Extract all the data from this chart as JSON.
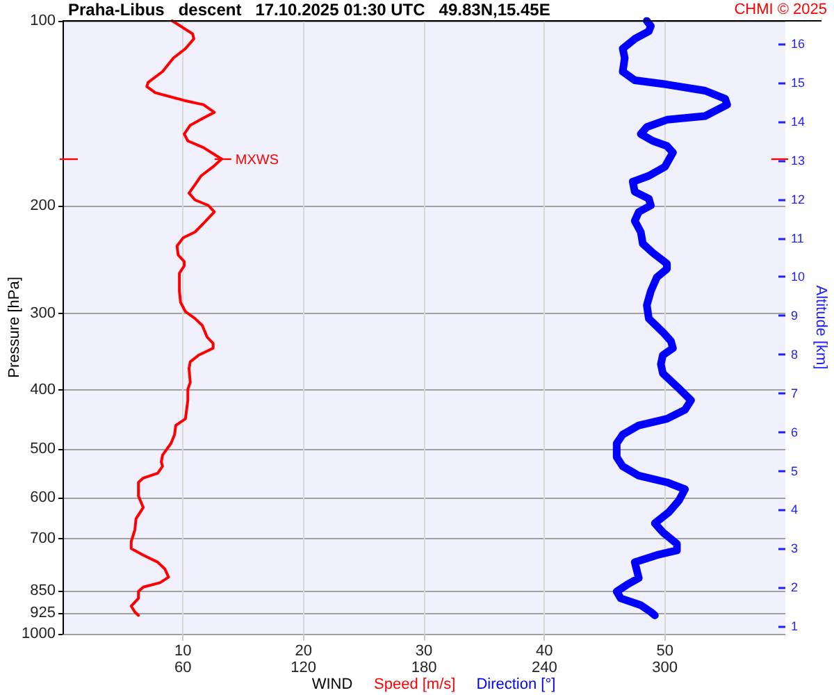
{
  "chart_data": {
    "type": "line",
    "orientation": "horizontal",
    "title": "Praha-Libus   descent   17.10.2025 01:30 UTC   49.83N,15.45E",
    "xlabel": "WIND",
    "ylabel": "Pressure [hPa]",
    "y2label": "Altitude [km]",
    "annotations": [
      "CHMI © 2025",
      {
        "text": "MXWS",
        "x": 13.2,
        "y": 168
      }
    ],
    "series": [
      {
        "name": "Speed [m/s]",
        "color": "#ff0000",
        "x": [
          100,
          105,
          107,
          111,
          115,
          121,
          126,
          128,
          131,
          135,
          137,
          141,
          144,
          148,
          153,
          157,
          161,
          168,
          173,
          179,
          185,
          191,
          196,
          200,
          205,
          214,
          221,
          226,
          233,
          241,
          247,
          251,
          258,
          276,
          288,
          298,
          306,
          314,
          328,
          336,
          342,
          351,
          360,
          369,
          389,
          399,
          416,
          446,
          457,
          473,
          489,
          511,
          524,
          533,
          547,
          557,
          566,
          596,
          622,
          649,
          677,
          707,
          726,
          744,
          764,
          784,
          808,
          825,
          839,
          853,
          875,
          901,
          921,
          933
        ],
        "values": [
          9.1,
          10.8,
          10.9,
          10.2,
          9.2,
          8.3,
          7.1,
          7.0,
          7.7,
          10.2,
          11.7,
          12.6,
          11.7,
          10.6,
          10.1,
          10.4,
          11.7,
          13.2,
          12.5,
          11.5,
          11.0,
          10.5,
          11.0,
          12.1,
          12.6,
          11.7,
          11.0,
          10.0,
          9.5,
          9.6,
          10.1,
          10.1,
          9.7,
          9.7,
          9.8,
          10.2,
          11.0,
          11.6,
          12.0,
          12.5,
          12.5,
          11.3,
          10.6,
          10.5,
          10.6,
          10.4,
          10.4,
          10.2,
          9.4,
          9.3,
          9.0,
          8.3,
          8.2,
          8.3,
          7.9,
          6.7,
          6.3,
          6.3,
          6.7,
          6.1,
          6.0,
          5.7,
          5.7,
          6.7,
          7.9,
          8.5,
          8.8,
          8.1,
          6.7,
          6.3,
          6.3,
          5.7,
          6.0,
          6.3
        ]
      },
      {
        "name": "Direction [°]",
        "color": "#0000ff",
        "axis": "x2",
        "x": [
          100,
          102,
          104,
          107,
          111,
          115,
          121,
          125,
          127,
          130,
          134,
          137,
          143,
          145,
          149,
          153,
          157,
          160,
          164,
          173,
          179,
          183,
          190,
          195,
          200,
          205,
          212,
          221,
          231,
          239,
          249,
          254,
          262,
          276,
          291,
          306,
          322,
          333,
          342,
          351,
          363,
          376,
          395,
          416,
          431,
          446,
          457,
          473,
          489,
          515,
          533,
          552,
          566,
          581,
          606,
          633,
          660,
          683,
          713,
          731,
          744,
          764,
          811,
          832,
          853,
          875,
          898,
          921,
          933
        ],
        "values": [
          291,
          293,
          292,
          285,
          279,
          280,
          279,
          285,
          301,
          320,
          330,
          331,
          320,
          301,
          291,
          288,
          294,
          301,
          304,
          300,
          292,
          284,
          285,
          292,
          293,
          287,
          285,
          288,
          289,
          294,
          301,
          301,
          296,
          293,
          291,
          292,
          299,
          303,
          304,
          299,
          298,
          299,
          306,
          313,
          310,
          301,
          287,
          279,
          276,
          276,
          279,
          287,
          301,
          310,
          307,
          302,
          295,
          299,
          306,
          306,
          296,
          285,
          287,
          281,
          276,
          278,
          288,
          293,
          295
        ]
      }
    ],
    "xlim": [
      0,
      60
    ],
    "xticks": [
      10,
      20,
      30,
      40,
      50
    ],
    "x2lim": [
      0,
      360
    ],
    "x2ticks": [
      60,
      120,
      180,
      240,
      300
    ],
    "ylim": [
      1000,
      100
    ],
    "yticks": [
      1000,
      925,
      850,
      700,
      600,
      500,
      400,
      300,
      200,
      100
    ],
    "y2lim": [
      0.8,
      16.6
    ],
    "y2ticks": [
      1,
      2,
      3,
      4,
      5,
      6,
      7,
      8,
      9,
      10,
      11,
      12,
      13,
      14,
      15,
      16
    ],
    "log": "y",
    "grid": true,
    "legend": "bottom",
    "marker": "none"
  }
}
